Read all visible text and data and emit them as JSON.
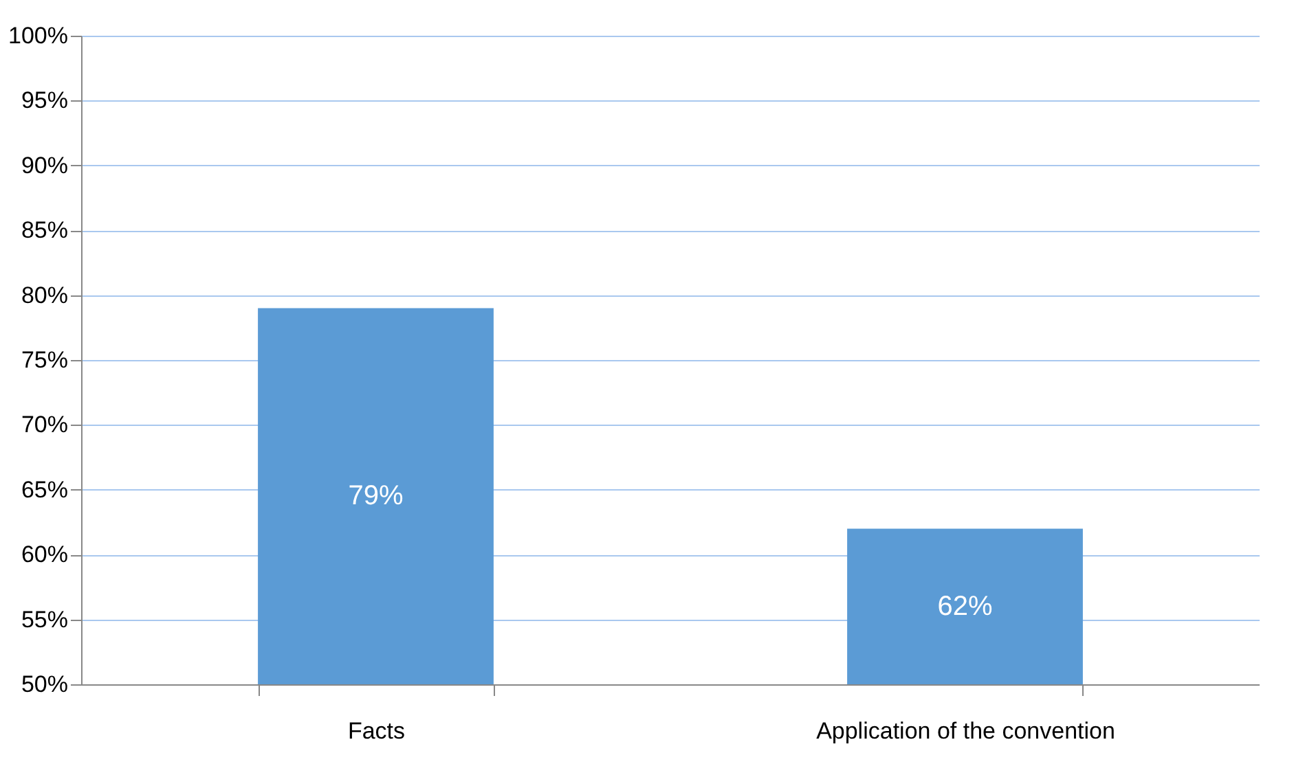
{
  "chart_data": {
    "type": "bar",
    "categories": [
      "Facts",
      "Application of the convention"
    ],
    "values": [
      79,
      62
    ],
    "value_labels": [
      "79%",
      "62%"
    ],
    "color": "#5b9bd5",
    "ylim": [
      50,
      100
    ],
    "yticks": [
      {
        "value": 50,
        "label": "50%"
      },
      {
        "value": 55,
        "label": "55%"
      },
      {
        "value": 60,
        "label": "60%"
      },
      {
        "value": 65,
        "label": "65%"
      },
      {
        "value": 70,
        "label": "70%"
      },
      {
        "value": 75,
        "label": "75%"
      },
      {
        "value": 80,
        "label": "80%"
      },
      {
        "value": 85,
        "label": "85%"
      },
      {
        "value": 90,
        "label": "90%"
      },
      {
        "value": 95,
        "label": "95%"
      },
      {
        "value": 100,
        "label": "100%"
      }
    ],
    "grid": "y"
  }
}
